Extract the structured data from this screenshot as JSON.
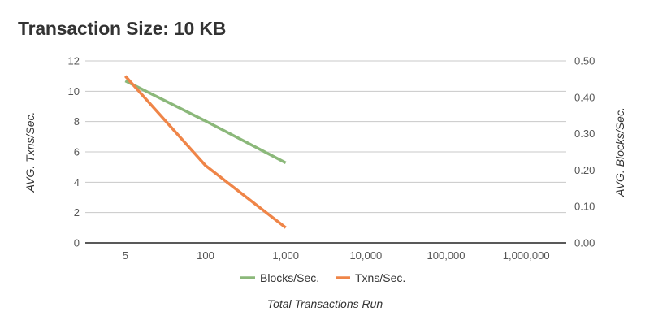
{
  "title": "Transaction Size: 10 KB",
  "chart_data": {
    "type": "line",
    "title": "Transaction Size: 10 KB",
    "x_categories": [
      "5",
      "100",
      "1,000",
      "10,000",
      "100,000",
      "1,000,000"
    ],
    "x_axis_label": "Total Transactions Run",
    "y_left": {
      "label": "AVG. Txns/Sec.",
      "ticks": [
        "0",
        "2",
        "4",
        "6",
        "8",
        "10",
        "12"
      ],
      "min": 0,
      "max": 12
    },
    "y_right": {
      "label": "AVG. Blocks/Sec.",
      "ticks": [
        "0.00",
        "0.10",
        "0.20",
        "0.30",
        "0.40",
        "0.50"
      ],
      "min": 0,
      "max": 0.5
    },
    "grid": true,
    "legend_position": "bottom",
    "series": [
      {
        "name": "Blocks/Sec.",
        "axis": "right",
        "color": "#8bb87a",
        "values": [
          0.445,
          0.335,
          0.22,
          null,
          null,
          null
        ]
      },
      {
        "name": "Txns/Sec.",
        "axis": "left",
        "color": "#ef8548",
        "values": [
          11.0,
          5.1,
          1.0,
          null,
          null,
          null
        ]
      }
    ]
  }
}
